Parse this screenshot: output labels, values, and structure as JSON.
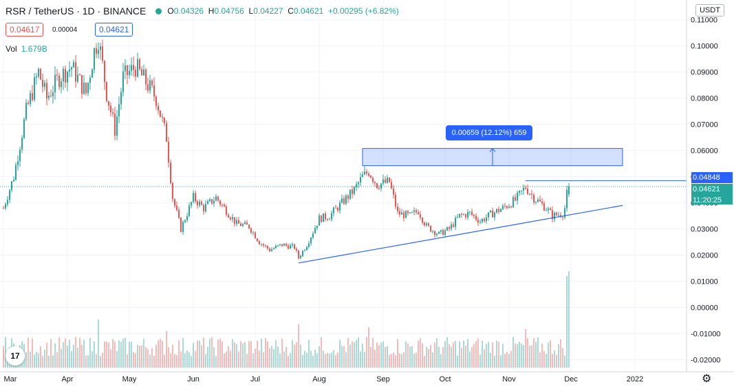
{
  "header": {
    "symbol_text": "RSR / TetherUS · 1D · BINANCE",
    "status_color": "#26a69a",
    "open_key": "O",
    "open": "0.04326",
    "high_key": "H",
    "high": "0.04756",
    "low_key": "L",
    "low": "0.04227",
    "close_key": "C",
    "close": "0.04621",
    "change": "+0.00295 (+6.82%)"
  },
  "order_panel": {
    "sell_price": "0.04617",
    "spread": "0.00004",
    "buy_price": "0.04621"
  },
  "volume_legend": {
    "label": "Vol",
    "value": "1.679B"
  },
  "currency_button": "USDT",
  "price_labels": {
    "resistance": "0.04848",
    "last_price": "0.04621",
    "countdown": "11:20:25",
    "resistance_color": "#2962ff",
    "last_color": "#26a69a"
  },
  "measure_tool": {
    "text": "0.00659 (12.12%) 659"
  },
  "settings_icon": "gear-icon",
  "logo_icon": "tradingview-logo-icon",
  "logo_text": "17",
  "chart_data": {
    "type": "candlestick",
    "title": "RSR / TetherUS · 1D · BINANCE",
    "y_ticks": [
      "0.11000",
      "0.10000",
      "0.09000",
      "0.08000",
      "0.07000",
      "0.06000",
      "0.05000",
      "0.04000",
      "0.03000",
      "0.02000",
      "0.01000",
      "0.00000",
      "-0.01000",
      "-0.02000"
    ],
    "y_range": [
      -0.02,
      0.11
    ],
    "x_ticks": [
      "Mar",
      "Apr",
      "May",
      "Jun",
      "Jul",
      "Aug",
      "Sep",
      "Oct",
      "Nov",
      "Dec",
      "2022"
    ],
    "x_tick_dates": [
      "2021-03-01",
      "2021-04-01",
      "2021-05-01",
      "2021-06-01",
      "2021-07-01",
      "2021-08-01",
      "2021-09-01",
      "2021-10-01",
      "2021-11-01",
      "2021-12-01",
      "2022-01-01"
    ],
    "x_range": [
      "2021-03-01",
      "2022-01-26"
    ],
    "up_color": "#26a69a",
    "down_color": "#ef5350",
    "close_path": [
      [
        "2021-03-01",
        0.038
      ],
      [
        "2021-03-06",
        0.05
      ],
      [
        "2021-03-12",
        0.075
      ],
      [
        "2021-03-18",
        0.09
      ],
      [
        "2021-03-22",
        0.08
      ],
      [
        "2021-03-28",
        0.088
      ],
      [
        "2021-04-03",
        0.092
      ],
      [
        "2021-04-10",
        0.082
      ],
      [
        "2021-04-14",
        0.098
      ],
      [
        "2021-04-16",
        0.103
      ],
      [
        "2021-04-20",
        0.082
      ],
      [
        "2021-04-24",
        0.068
      ],
      [
        "2021-04-28",
        0.088
      ],
      [
        "2021-05-04",
        0.092
      ],
      [
        "2021-05-10",
        0.085
      ],
      [
        "2021-05-14",
        0.08
      ],
      [
        "2021-05-19",
        0.065
      ],
      [
        "2021-05-22",
        0.042
      ],
      [
        "2021-05-26",
        0.03
      ],
      [
        "2021-06-01",
        0.042
      ],
      [
        "2021-06-06",
        0.038
      ],
      [
        "2021-06-12",
        0.042
      ],
      [
        "2021-06-18",
        0.036
      ],
      [
        "2021-06-22",
        0.032
      ],
      [
        "2021-06-28",
        0.031
      ],
      [
        "2021-07-03",
        0.025
      ],
      [
        "2021-07-08",
        0.022
      ],
      [
        "2021-07-14",
        0.024
      ],
      [
        "2021-07-20",
        0.023
      ],
      [
        "2021-07-22",
        0.019
      ],
      [
        "2021-07-26",
        0.024
      ],
      [
        "2021-08-01",
        0.034
      ],
      [
        "2021-08-06",
        0.035
      ],
      [
        "2021-08-12",
        0.04
      ],
      [
        "2021-08-18",
        0.045
      ],
      [
        "2021-08-22",
        0.05
      ],
      [
        "2021-08-25",
        0.052
      ],
      [
        "2021-08-29",
        0.047
      ],
      [
        "2021-09-04",
        0.048
      ],
      [
        "2021-09-08",
        0.036
      ],
      [
        "2021-09-14",
        0.035
      ],
      [
        "2021-09-18",
        0.037
      ],
      [
        "2021-09-22",
        0.031
      ],
      [
        "2021-09-28",
        0.028
      ],
      [
        "2021-10-03",
        0.03
      ],
      [
        "2021-10-08",
        0.035
      ],
      [
        "2021-10-13",
        0.036
      ],
      [
        "2021-10-18",
        0.033
      ],
      [
        "2021-10-24",
        0.036
      ],
      [
        "2021-10-29",
        0.038
      ],
      [
        "2021-11-04",
        0.041
      ],
      [
        "2021-11-09",
        0.046
      ],
      [
        "2021-11-13",
        0.042
      ],
      [
        "2021-11-16",
        0.04
      ],
      [
        "2021-11-19",
        0.038
      ],
      [
        "2021-11-22",
        0.035
      ],
      [
        "2021-11-27",
        0.036
      ],
      [
        "2021-11-28",
        0.038
      ],
      [
        "2021-11-29",
        0.0433
      ],
      [
        "2021-11-30",
        0.0462
      ]
    ],
    "volume": {
      "peak": 1.679,
      "unit": "B",
      "spikes": [
        [
          "2021-04-16",
          0.5
        ],
        [
          "2021-05-19",
          0.38
        ],
        [
          "2021-07-22",
          0.45
        ],
        [
          "2021-08-25",
          0.42
        ],
        [
          "2021-11-09",
          0.4
        ],
        [
          "2021-11-29",
          0.95
        ],
        [
          "2021-11-30",
          1.0
        ]
      ]
    },
    "trendline_support": [
      [
        "2021-07-22",
        0.017
      ],
      [
        "2021-12-26",
        0.039
      ]
    ],
    "resistance_level": {
      "value": 0.04848,
      "from": "2021-11-09"
    },
    "last_price": 0.04621,
    "measured_zone": {
      "from": "2021-08-22",
      "to": "2021-12-26",
      "low": 0.0542,
      "high": 0.0608
    },
    "grid": true
  }
}
